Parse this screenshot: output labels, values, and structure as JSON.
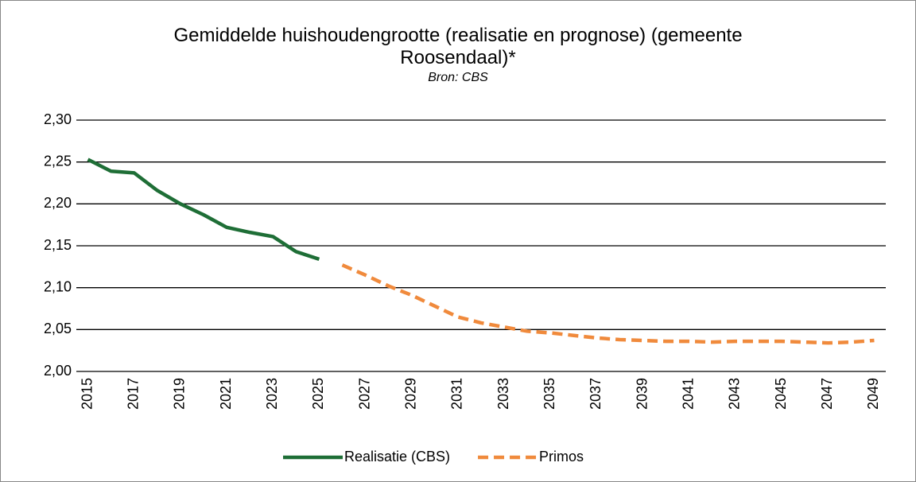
{
  "chart_data": {
    "type": "line",
    "title": "Gemiddelde huishoudengrootte (realisatie en prognose) (gemeente Roosendaal)*",
    "subtitle": "Bron: CBS",
    "categories": [
      "2015",
      null,
      "2017",
      null,
      "2019",
      null,
      "2021",
      null,
      "2023",
      null,
      "2025",
      null,
      "2027",
      null,
      "2029",
      null,
      "2031",
      null,
      "2033",
      null,
      "2035",
      null,
      "2037",
      null,
      "2039",
      null,
      "2041",
      null,
      "2043",
      null,
      "2045",
      null,
      "2047",
      null,
      "2049"
    ],
    "series": [
      {
        "name": "Realisatie (CBS)",
        "color": "#1e6e36",
        "dashed": false,
        "values": [
          2.253,
          2.239,
          2.237,
          2.216,
          2.2,
          2.187,
          2.172,
          2.166,
          2.161,
          2.143,
          2.134,
          null,
          null,
          null,
          null,
          null,
          null,
          null,
          null,
          null,
          null,
          null,
          null,
          null,
          null,
          null,
          null,
          null,
          null,
          null,
          null,
          null,
          null,
          null,
          null
        ]
      },
      {
        "name": "Primos",
        "color": "#f08a3c",
        "dashed": true,
        "values": [
          null,
          null,
          null,
          null,
          null,
          null,
          null,
          null,
          null,
          null,
          null,
          2.127,
          2.115,
          2.102,
          2.091,
          2.078,
          2.065,
          2.058,
          2.053,
          2.048,
          2.046,
          2.043,
          2.04,
          2.038,
          2.037,
          2.036,
          2.036,
          2.035,
          2.036,
          2.036,
          2.036,
          2.035,
          2.034,
          2.035,
          2.037
        ]
      }
    ],
    "ylim": [
      2.0,
      2.3
    ],
    "yticks": [
      {
        "value": 2.0,
        "label": "2,00"
      },
      {
        "value": 2.05,
        "label": "2,05"
      },
      {
        "value": 2.1,
        "label": "2,10"
      },
      {
        "value": 2.15,
        "label": "2,15"
      },
      {
        "value": 2.2,
        "label": "2,20"
      },
      {
        "value": 2.25,
        "label": "2,25"
      },
      {
        "value": 2.3,
        "label": "2,30"
      }
    ],
    "grid": true,
    "legend": "bottom"
  }
}
